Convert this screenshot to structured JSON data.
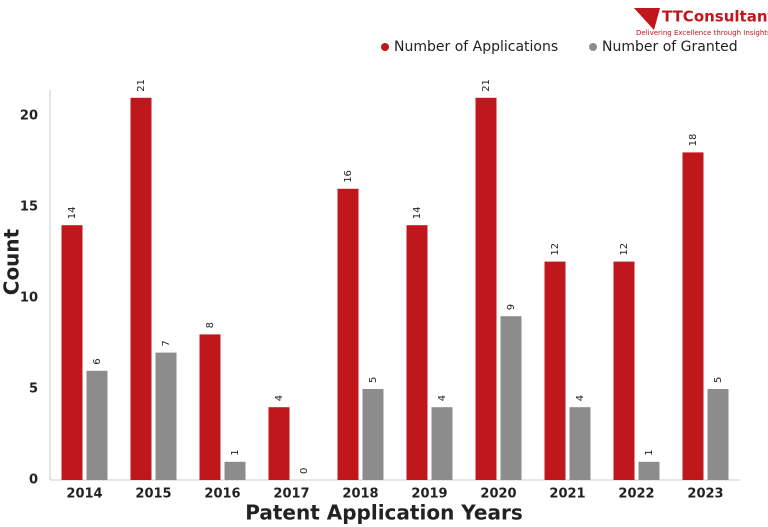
{
  "logo": {
    "name": "TTConsultants",
    "tagline": "Delivering Excellence through Insights"
  },
  "chart_data": {
    "type": "bar",
    "xlabel": "Patent Application Years",
    "ylabel": "Count",
    "categories": [
      "2014",
      "2015",
      "2016",
      "2017",
      "2018",
      "2019",
      "2020",
      "2021",
      "2022",
      "2023"
    ],
    "series": [
      {
        "name": "Number of Applications",
        "color": "#c0171c",
        "values": [
          14,
          21,
          8,
          4,
          16,
          14,
          21,
          12,
          12,
          18
        ]
      },
      {
        "name": "Number of Granted",
        "color": "#8c8c8c",
        "values": [
          6,
          7,
          1,
          0,
          5,
          4,
          9,
          4,
          1,
          5
        ]
      }
    ],
    "ylim": [
      0,
      21.5
    ],
    "yticks": [
      0,
      5,
      10,
      15,
      20
    ],
    "grid": false,
    "legend": "top-right"
  }
}
